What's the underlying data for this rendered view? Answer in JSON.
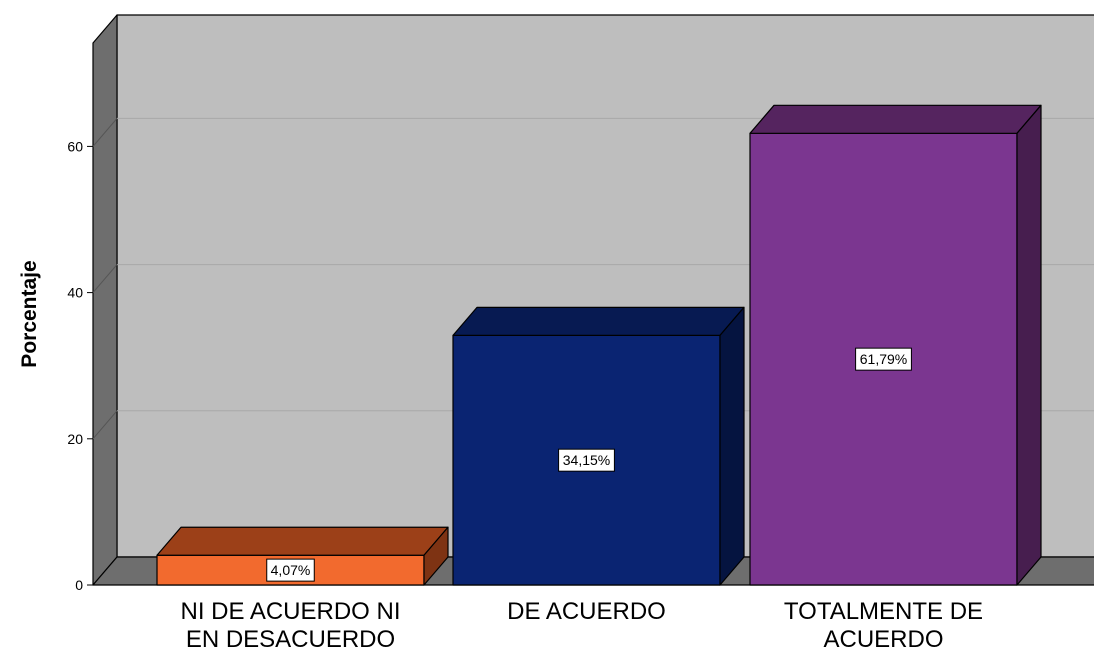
{
  "chart_data": {
    "type": "bar",
    "categories": [
      "NI DE ACUERDO NI EN DESACUERDO",
      "DE ACUERDO",
      "TOTALMENTE DE ACUERDO"
    ],
    "category_lines": [
      [
        "NI DE ACUERDO NI",
        "EN DESACUERDO"
      ],
      [
        "DE ACUERDO"
      ],
      [
        "TOTALMENTE DE",
        "ACUERDO"
      ]
    ],
    "values": [
      4.07,
      34.15,
      61.79
    ],
    "data_labels": [
      "4,07%",
      "34,15%",
      "61,79%"
    ],
    "ylabel": "Porcentaje",
    "xlabel": "",
    "title": "",
    "yticks": [
      0,
      20,
      40,
      60
    ],
    "ylim": [
      0,
      75
    ],
    "grid": true,
    "style": "3d",
    "colors": {
      "bars": [
        "#F26A2E",
        "#0A2472",
        "#7B3690"
      ],
      "bar_tops": [
        "#9C4018",
        "#071A52",
        "#55245F"
      ],
      "bar_sides": [
        "#7E3313",
        "#051440",
        "#471E4F"
      ],
      "wall": "#BEBEBE",
      "wall_left": "#6E6E6E",
      "floor": "#6E6E6E",
      "gridline": "#A8A8A8"
    }
  }
}
